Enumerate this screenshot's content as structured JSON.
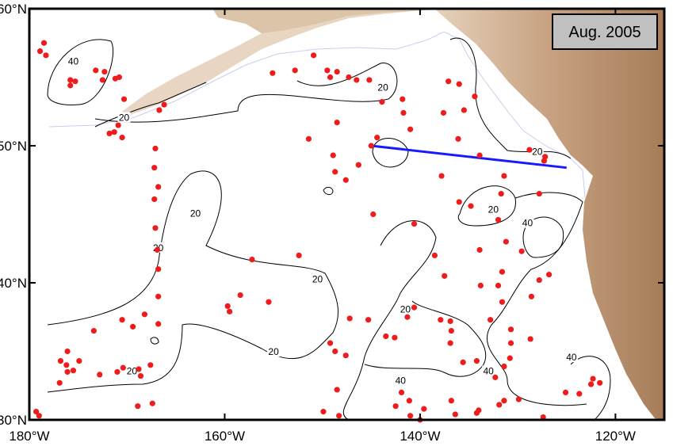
{
  "title": "Aug. 2005",
  "axes": {
    "lon_ticks": [
      {
        "value": -180,
        "label": "180°W"
      },
      {
        "value": -160,
        "label": "160°W"
      },
      {
        "value": -140,
        "label": "140°W"
      },
      {
        "value": -120,
        "label": "120°W"
      }
    ],
    "lat_ticks": [
      {
        "value": 30,
        "label": "30°N"
      },
      {
        "value": 40,
        "label": "40°N"
      },
      {
        "value": 50,
        "label": "50°N"
      },
      {
        "value": 60,
        "label": "60°N"
      }
    ]
  },
  "contour_labels": [
    {
      "text": "40",
      "lon": -175.5,
      "lat": 56.1
    },
    {
      "text": "20",
      "lon": -170.3,
      "lat": 52.0
    },
    {
      "text": "20",
      "lon": -143.8,
      "lat": 54.2
    },
    {
      "text": "20",
      "lon": -128.0,
      "lat": 49.5
    },
    {
      "text": "20",
      "lon": -163.0,
      "lat": 45.0
    },
    {
      "text": "20",
      "lon": -166.8,
      "lat": 42.5
    },
    {
      "text": "20",
      "lon": -150.5,
      "lat": 40.2
    },
    {
      "text": "20",
      "lon": -141.5,
      "lat": 38.0
    },
    {
      "text": "20",
      "lon": -132.5,
      "lat": 45.3
    },
    {
      "text": "40",
      "lon": -129.0,
      "lat": 44.3
    },
    {
      "text": "20",
      "lon": -155.0,
      "lat": 34.9
    },
    {
      "text": "20",
      "lon": -169.5,
      "lat": 33.5
    },
    {
      "text": "40",
      "lon": -142.0,
      "lat": 32.8
    },
    {
      "text": "40",
      "lon": -133.0,
      "lat": 33.5
    },
    {
      "text": "40",
      "lon": -124.5,
      "lat": 34.5
    }
  ],
  "transect": {
    "color": "#1a1aff",
    "from": {
      "lon": -145.0,
      "lat": 50.0
    },
    "to": {
      "lon": -125.0,
      "lat": 48.4
    }
  },
  "observation_color": "#ee1c1c",
  "observations": [
    [
      -178.5,
      57.5
    ],
    [
      -178.9,
      56.9
    ],
    [
      -178.3,
      56.6
    ],
    [
      -175.8,
      54.8
    ],
    [
      -175.8,
      54.4
    ],
    [
      -175.3,
      54.7
    ],
    [
      -173.2,
      55.5
    ],
    [
      -172.3,
      55.4
    ],
    [
      -172.5,
      54.8
    ],
    [
      -170.8,
      55.0
    ],
    [
      -171.2,
      54.9
    ],
    [
      -170.3,
      53.4
    ],
    [
      -170.9,
      51.5
    ],
    [
      -171.3,
      51.0
    ],
    [
      -171.8,
      50.9
    ],
    [
      -170.5,
      50.6
    ],
    [
      -166.7,
      52.6
    ],
    [
      -166.2,
      53.0
    ],
    [
      -167.1,
      49.8
    ],
    [
      -167.2,
      48.4
    ],
    [
      -166.8,
      47.0
    ],
    [
      -167.2,
      46.1
    ],
    [
      -167.1,
      44.0
    ],
    [
      -166.9,
      42.4
    ],
    [
      -166.8,
      41.0
    ],
    [
      -166.8,
      39.0
    ],
    [
      -166.8,
      37.0
    ],
    [
      -167.6,
      34.0
    ],
    [
      -168.8,
      33.7
    ],
    [
      -168.6,
      33.2
    ],
    [
      -170.5,
      37.3
    ],
    [
      -169.4,
      36.8
    ],
    [
      -168.2,
      37.7
    ],
    [
      -176.1,
      35.0
    ],
    [
      -176.2,
      34.0
    ],
    [
      -175.5,
      33.6
    ],
    [
      -174.9,
      34.3
    ],
    [
      -176.8,
      34.3
    ],
    [
      -176.1,
      33.5
    ],
    [
      -176.9,
      32.7
    ],
    [
      -179.3,
      30.6
    ],
    [
      -179.0,
      30.3
    ],
    [
      -172.8,
      33.3
    ],
    [
      -171.0,
      33.5
    ],
    [
      -170.4,
      33.8
    ],
    [
      -168.9,
      31.0
    ],
    [
      -167.4,
      31.2
    ],
    [
      -173.4,
      36.5
    ],
    [
      -159.7,
      38.3
    ],
    [
      -159.5,
      37.9
    ],
    [
      -158.4,
      39.1
    ],
    [
      -155.5,
      38.6
    ],
    [
      -157.2,
      41.7
    ],
    [
      -152.4,
      42.0
    ],
    [
      -155.1,
      55.3
    ],
    [
      -152.8,
      55.5
    ],
    [
      -150.9,
      56.6
    ],
    [
      -149.5,
      55.5
    ],
    [
      -149.2,
      55.0
    ],
    [
      -148.5,
      55.4
    ],
    [
      -147.3,
      55.0
    ],
    [
      -146.5,
      54.8
    ],
    [
      -145.2,
      54.8
    ],
    [
      -143.9,
      53.2
    ],
    [
      -141.8,
      53.4
    ],
    [
      -141.7,
      52.4
    ],
    [
      -141.0,
      51.2
    ],
    [
      -144.4,
      50.6
    ],
    [
      -145.0,
      50.0
    ],
    [
      -146.3,
      48.6
    ],
    [
      -148.5,
      51.7
    ],
    [
      -148.9,
      49.3
    ],
    [
      -148.7,
      48.1
    ],
    [
      -147.6,
      47.5
    ],
    [
      -151.4,
      50.5
    ],
    [
      -144.8,
      45.0
    ],
    [
      -140.6,
      44.3
    ],
    [
      -138.5,
      42.0
    ],
    [
      -137.5,
      40.5
    ],
    [
      -140.6,
      38.2
    ],
    [
      -141.3,
      37.5
    ],
    [
      -142.6,
      36.0
    ],
    [
      -143.5,
      36.1
    ],
    [
      -145.3,
      37.3
    ],
    [
      -147.2,
      37.4
    ],
    [
      -149.2,
      35.6
    ],
    [
      -148.7,
      35.0
    ],
    [
      -147.6,
      34.7
    ],
    [
      -148.5,
      32.2
    ],
    [
      -149.9,
      30.6
    ],
    [
      -148.3,
      30.3
    ],
    [
      -141.9,
      32.0
    ],
    [
      -142.5,
      31.0
    ],
    [
      -141.1,
      31.4
    ],
    [
      -141.0,
      30.3
    ],
    [
      -140.0,
      30.0
    ],
    [
      -139.6,
      30.8
    ],
    [
      -136.8,
      31.4
    ],
    [
      -136.4,
      30.4
    ],
    [
      -135.6,
      34.2
    ],
    [
      -134.2,
      34.3
    ],
    [
      -136.8,
      36.5
    ],
    [
      -136.9,
      35.6
    ],
    [
      -137.9,
      37.3
    ],
    [
      -136.9,
      37.2
    ],
    [
      -133.8,
      39.8
    ],
    [
      -132.0,
      39.8
    ],
    [
      -131.6,
      38.6
    ],
    [
      -132.8,
      37.3
    ],
    [
      -130.7,
      36.6
    ],
    [
      -130.7,
      35.6
    ],
    [
      -128.6,
      39.0
    ],
    [
      -127.8,
      40.2
    ],
    [
      -126.8,
      40.6
    ],
    [
      -128.7,
      35.9
    ],
    [
      -130.8,
      34.5
    ],
    [
      -131.4,
      33.9
    ],
    [
      -132.3,
      33.1
    ],
    [
      -131.9,
      31.1
    ],
    [
      -131.4,
      31.4
    ],
    [
      -129.9,
      31.5
    ],
    [
      -127.4,
      30.2
    ],
    [
      -125.1,
      32.0
    ],
    [
      -123.7,
      31.9
    ],
    [
      -122.5,
      32.6
    ],
    [
      -122.3,
      33.0
    ],
    [
      -121.6,
      32.7
    ],
    [
      -134.0,
      30.7
    ],
    [
      -134.2,
      30.5
    ],
    [
      -133.9,
      42.4
    ],
    [
      -131.2,
      43.0
    ],
    [
      -131.6,
      40.8
    ],
    [
      -129.6,
      42.3
    ],
    [
      -134.8,
      45.6
    ],
    [
      -131.7,
      46.5
    ],
    [
      -127.8,
      46.5
    ],
    [
      -132.0,
      44.6
    ],
    [
      -137.8,
      47.8
    ],
    [
      -136.0,
      45.9
    ],
    [
      -136.1,
      50.5
    ],
    [
      -133.9,
      49.3
    ],
    [
      -136.0,
      54.5
    ],
    [
      -135.5,
      52.6
    ],
    [
      -137.6,
      52.4
    ],
    [
      -131.4,
      47.8
    ],
    [
      -128.8,
      49.7
    ],
    [
      -127.3,
      48.9
    ],
    [
      -127.2,
      49.2
    ],
    [
      -134.4,
      53.6
    ],
    [
      -137.1,
      54.7
    ]
  ]
}
